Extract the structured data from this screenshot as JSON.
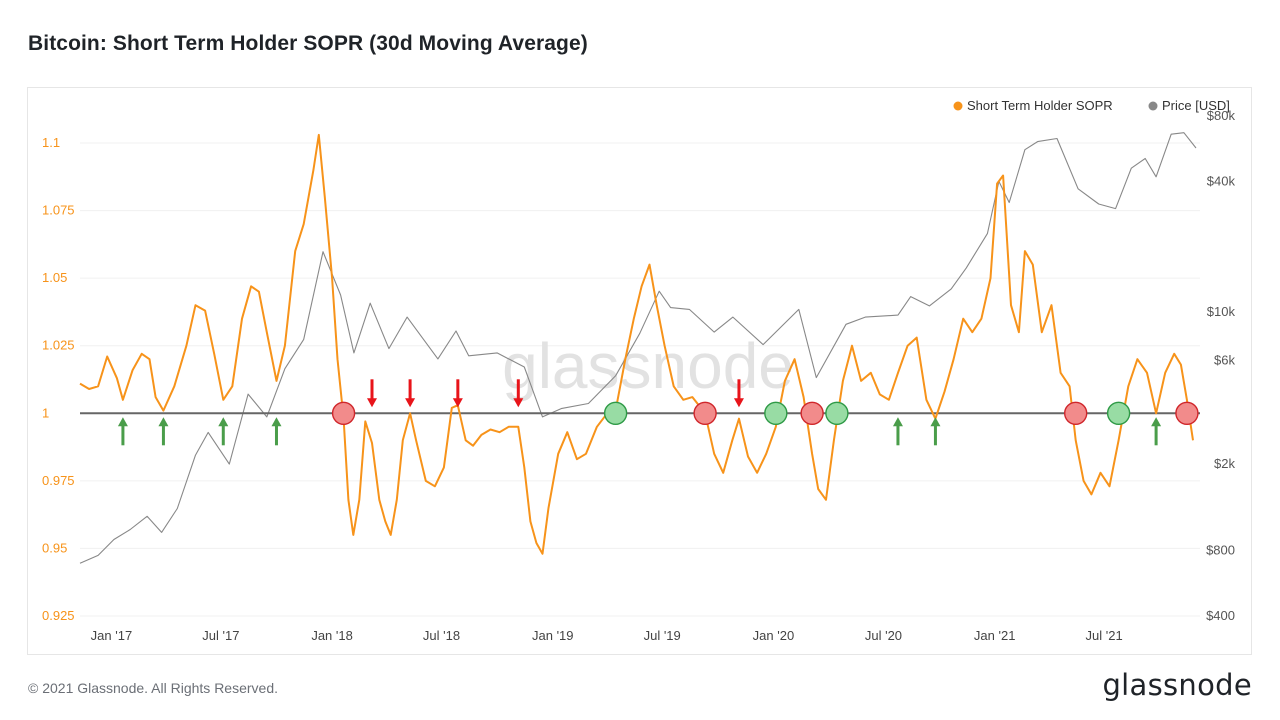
{
  "title": "Bitcoin: Short Term Holder SOPR (30d Moving Average)",
  "footer": {
    "copyright": "© 2021 Glassnode. All Rights Reserved.",
    "brand": "glassnode"
  },
  "watermark": "glassnode",
  "colors": {
    "sopr": "#f7931a",
    "price": "#888888",
    "baseline": "#666666",
    "up_arrow": "#4a9d4a",
    "down_arrow": "#e8141a",
    "red_circle": "#f28b8b",
    "green_circle": "#98dca4"
  },
  "chart_data": {
    "type": "line",
    "legend": {
      "position": "top-right",
      "items": [
        {
          "name": "Short Term Holder SOPR",
          "color": "#f7931a"
        },
        {
          "name": "Price [USD]",
          "color": "#888888"
        }
      ]
    },
    "x_ticks": [
      {
        "label": "Jan '17",
        "date": "2017-01-01"
      },
      {
        "label": "Jul '17",
        "date": "2017-07-01"
      },
      {
        "label": "Jan '18",
        "date": "2018-01-01"
      },
      {
        "label": "Jul '18",
        "date": "2018-07-01"
      },
      {
        "label": "Jan '19",
        "date": "2019-01-01"
      },
      {
        "label": "Jul '19",
        "date": "2019-07-01"
      },
      {
        "label": "Jan '20",
        "date": "2020-01-01"
      },
      {
        "label": "Jul '20",
        "date": "2020-07-01"
      },
      {
        "label": "Jan '21",
        "date": "2021-01-01"
      },
      {
        "label": "Jul '21",
        "date": "2021-07-01"
      }
    ],
    "xlim": [
      "2016-11-10",
      "2021-11-30"
    ],
    "y_left": {
      "ylim": [
        0.925,
        1.11
      ],
      "ticks": [
        {
          "v": 0.925,
          "label": "0.925"
        },
        {
          "v": 0.95,
          "label": "0.95"
        },
        {
          "v": 0.975,
          "label": "0.975"
        },
        {
          "v": 1,
          "label": "1"
        },
        {
          "v": 1.025,
          "label": "1.025"
        },
        {
          "v": 1.05,
          "label": "1.05"
        },
        {
          "v": 1.075,
          "label": "1.075"
        },
        {
          "v": 1.1,
          "label": "1.1"
        }
      ]
    },
    "y_right": {
      "scale": "log",
      "ylim": [
        400,
        80000
      ],
      "ticks": [
        {
          "v": 400,
          "label": "$400"
        },
        {
          "v": 800,
          "label": "$800"
        },
        {
          "v": 2000,
          "label": "$2k"
        },
        {
          "v": 6000,
          "label": "$6k"
        },
        {
          "v": 10000,
          "label": "$10k"
        },
        {
          "v": 40000,
          "label": "$40k"
        },
        {
          "v": 80000,
          "label": "$80k"
        }
      ]
    },
    "series": [
      {
        "name": "Short Term Holder SOPR",
        "color": "#f7931a",
        "axis": "left",
        "points": [
          [
            "2016-11-10",
            1.011
          ],
          [
            "2016-11-25",
            1.009
          ],
          [
            "2016-12-10",
            1.01
          ],
          [
            "2016-12-25",
            1.021
          ],
          [
            "2017-01-10",
            1.013
          ],
          [
            "2017-01-20",
            1.005
          ],
          [
            "2017-02-05",
            1.016
          ],
          [
            "2017-02-20",
            1.022
          ],
          [
            "2017-03-05",
            1.02
          ],
          [
            "2017-03-15",
            1.006
          ],
          [
            "2017-03-28",
            1.001
          ],
          [
            "2017-04-15",
            1.01
          ],
          [
            "2017-05-05",
            1.025
          ],
          [
            "2017-05-20",
            1.04
          ],
          [
            "2017-06-05",
            1.038
          ],
          [
            "2017-06-20",
            1.022
          ],
          [
            "2017-07-05",
            1.005
          ],
          [
            "2017-07-20",
            1.01
          ],
          [
            "2017-08-05",
            1.035
          ],
          [
            "2017-08-20",
            1.047
          ],
          [
            "2017-09-02",
            1.045
          ],
          [
            "2017-09-15",
            1.03
          ],
          [
            "2017-10-01",
            1.012
          ],
          [
            "2017-10-15",
            1.025
          ],
          [
            "2017-11-01",
            1.06
          ],
          [
            "2017-11-15",
            1.07
          ],
          [
            "2017-12-01",
            1.09
          ],
          [
            "2017-12-10",
            1.103
          ],
          [
            "2017-12-20",
            1.08
          ],
          [
            "2018-01-01",
            1.05
          ],
          [
            "2018-01-10",
            1.02
          ],
          [
            "2018-01-20",
            0.998
          ],
          [
            "2018-01-28",
            0.968
          ],
          [
            "2018-02-05",
            0.955
          ],
          [
            "2018-02-15",
            0.968
          ],
          [
            "2018-02-25",
            0.997
          ],
          [
            "2018-03-08",
            0.989
          ],
          [
            "2018-03-20",
            0.968
          ],
          [
            "2018-03-30",
            0.96
          ],
          [
            "2018-04-08",
            0.955
          ],
          [
            "2018-04-18",
            0.968
          ],
          [
            "2018-04-28",
            0.99
          ],
          [
            "2018-05-10",
            1.0
          ],
          [
            "2018-05-20",
            0.99
          ],
          [
            "2018-06-05",
            0.975
          ],
          [
            "2018-06-20",
            0.973
          ],
          [
            "2018-07-05",
            0.98
          ],
          [
            "2018-07-18",
            1.002
          ],
          [
            "2018-07-28",
            1.003
          ],
          [
            "2018-08-10",
            0.99
          ],
          [
            "2018-08-22",
            0.988
          ],
          [
            "2018-09-05",
            0.992
          ],
          [
            "2018-09-20",
            0.994
          ],
          [
            "2018-10-05",
            0.993
          ],
          [
            "2018-10-20",
            0.995
          ],
          [
            "2018-11-05",
            0.995
          ],
          [
            "2018-11-15",
            0.98
          ],
          [
            "2018-11-25",
            0.96
          ],
          [
            "2018-12-05",
            0.952
          ],
          [
            "2018-12-15",
            0.948
          ],
          [
            "2018-12-25",
            0.965
          ],
          [
            "2019-01-10",
            0.985
          ],
          [
            "2019-01-25",
            0.993
          ],
          [
            "2019-02-10",
            0.983
          ],
          [
            "2019-02-25",
            0.985
          ],
          [
            "2019-03-15",
            0.995
          ],
          [
            "2019-04-01",
            1.0
          ],
          [
            "2019-04-15",
            1.001
          ],
          [
            "2019-05-01",
            1.02
          ],
          [
            "2019-05-15",
            1.035
          ],
          [
            "2019-05-28",
            1.047
          ],
          [
            "2019-06-10",
            1.055
          ],
          [
            "2019-06-22",
            1.04
          ],
          [
            "2019-07-05",
            1.025
          ],
          [
            "2019-07-20",
            1.01
          ],
          [
            "2019-08-05",
            1.005
          ],
          [
            "2019-08-20",
            1.006
          ],
          [
            "2019-09-10",
            1.0
          ],
          [
            "2019-09-25",
            0.985
          ],
          [
            "2019-10-10",
            0.978
          ],
          [
            "2019-10-25",
            0.99
          ],
          [
            "2019-11-05",
            0.998
          ],
          [
            "2019-11-20",
            0.984
          ],
          [
            "2019-12-05",
            0.978
          ],
          [
            "2019-12-20",
            0.985
          ],
          [
            "2020-01-05",
            0.995
          ],
          [
            "2020-01-20",
            1.012
          ],
          [
            "2020-02-05",
            1.02
          ],
          [
            "2020-02-20",
            1.006
          ],
          [
            "2020-03-05",
            0.985
          ],
          [
            "2020-03-15",
            0.972
          ],
          [
            "2020-03-28",
            0.968
          ],
          [
            "2020-04-10",
            0.99
          ],
          [
            "2020-04-25",
            1.012
          ],
          [
            "2020-05-10",
            1.025
          ],
          [
            "2020-05-25",
            1.012
          ],
          [
            "2020-06-10",
            1.015
          ],
          [
            "2020-06-25",
            1.007
          ],
          [
            "2020-07-10",
            1.005
          ],
          [
            "2020-07-25",
            1.015
          ],
          [
            "2020-08-10",
            1.025
          ],
          [
            "2020-08-25",
            1.028
          ],
          [
            "2020-09-10",
            1.005
          ],
          [
            "2020-09-25",
            0.998
          ],
          [
            "2020-10-10",
            1.008
          ],
          [
            "2020-10-25",
            1.02
          ],
          [
            "2020-11-10",
            1.035
          ],
          [
            "2020-11-25",
            1.03
          ],
          [
            "2020-12-10",
            1.035
          ],
          [
            "2020-12-25",
            1.05
          ],
          [
            "2021-01-05",
            1.085
          ],
          [
            "2021-01-15",
            1.088
          ],
          [
            "2021-01-28",
            1.04
          ],
          [
            "2021-02-10",
            1.03
          ],
          [
            "2021-02-20",
            1.06
          ],
          [
            "2021-03-05",
            1.055
          ],
          [
            "2021-03-20",
            1.03
          ],
          [
            "2021-04-05",
            1.04
          ],
          [
            "2021-04-20",
            1.015
          ],
          [
            "2021-05-05",
            1.01
          ],
          [
            "2021-05-15",
            0.99
          ],
          [
            "2021-05-28",
            0.975
          ],
          [
            "2021-06-10",
            0.97
          ],
          [
            "2021-06-25",
            0.978
          ],
          [
            "2021-07-10",
            0.973
          ],
          [
            "2021-07-25",
            0.99
          ],
          [
            "2021-08-10",
            1.01
          ],
          [
            "2021-08-25",
            1.02
          ],
          [
            "2021-09-10",
            1.015
          ],
          [
            "2021-09-25",
            1.0
          ],
          [
            "2021-10-10",
            1.015
          ],
          [
            "2021-10-25",
            1.022
          ],
          [
            "2021-11-05",
            1.018
          ],
          [
            "2021-11-15",
            1.005
          ],
          [
            "2021-11-25",
            0.99
          ]
        ]
      },
      {
        "name": "Price [USD]",
        "color": "#888888",
        "axis": "right",
        "points": [
          [
            "2016-11-10",
            700
          ],
          [
            "2016-12-10",
            760
          ],
          [
            "2017-01-05",
            900
          ],
          [
            "2017-02-01",
            1000
          ],
          [
            "2017-03-01",
            1150
          ],
          [
            "2017-03-25",
            970
          ],
          [
            "2017-04-20",
            1250
          ],
          [
            "2017-05-20",
            2200
          ],
          [
            "2017-06-10",
            2800
          ],
          [
            "2017-07-15",
            2000
          ],
          [
            "2017-08-15",
            4200
          ],
          [
            "2017-09-15",
            3300
          ],
          [
            "2017-10-15",
            5500
          ],
          [
            "2017-11-15",
            7500
          ],
          [
            "2017-12-17",
            19000
          ],
          [
            "2018-01-15",
            12000
          ],
          [
            "2018-02-06",
            6500
          ],
          [
            "2018-03-05",
            11000
          ],
          [
            "2018-04-05",
            6800
          ],
          [
            "2018-05-05",
            9500
          ],
          [
            "2018-06-25",
            6100
          ],
          [
            "2018-07-25",
            8200
          ],
          [
            "2018-08-15",
            6300
          ],
          [
            "2018-10-01",
            6500
          ],
          [
            "2018-11-15",
            5600
          ],
          [
            "2018-12-15",
            3300
          ],
          [
            "2019-01-15",
            3600
          ],
          [
            "2019-03-01",
            3800
          ],
          [
            "2019-04-15",
            5100
          ],
          [
            "2019-05-25",
            8000
          ],
          [
            "2019-06-26",
            12500
          ],
          [
            "2019-07-15",
            10500
          ],
          [
            "2019-08-15",
            10300
          ],
          [
            "2019-09-25",
            8100
          ],
          [
            "2019-10-26",
            9500
          ],
          [
            "2019-12-15",
            7100
          ],
          [
            "2020-02-12",
            10300
          ],
          [
            "2020-03-12",
            5000
          ],
          [
            "2020-04-30",
            8800
          ],
          [
            "2020-06-01",
            9500
          ],
          [
            "2020-07-25",
            9700
          ],
          [
            "2020-08-15",
            11800
          ],
          [
            "2020-09-15",
            10700
          ],
          [
            "2020-10-21",
            12800
          ],
          [
            "2020-11-15",
            16000
          ],
          [
            "2020-12-20",
            23000
          ],
          [
            "2021-01-08",
            40000
          ],
          [
            "2021-01-25",
            32000
          ],
          [
            "2021-02-20",
            56000
          ],
          [
            "2021-03-13",
            61000
          ],
          [
            "2021-04-14",
            63000
          ],
          [
            "2021-05-19",
            37000
          ],
          [
            "2021-06-22",
            31500
          ],
          [
            "2021-07-20",
            30000
          ],
          [
            "2021-08-15",
            46000
          ],
          [
            "2021-09-07",
            51000
          ],
          [
            "2021-09-25",
            42000
          ],
          [
            "2021-10-20",
            66000
          ],
          [
            "2021-11-10",
            67000
          ],
          [
            "2021-11-30",
            57000
          ]
        ]
      }
    ],
    "markers": {
      "up_arrows": [
        "2017-01-20",
        "2017-03-28",
        "2017-07-05",
        "2017-10-01",
        "2020-07-25",
        "2020-09-25",
        "2021-09-25"
      ],
      "down_arrows": [
        "2018-03-08",
        "2018-05-10",
        "2018-07-28",
        "2018-11-05",
        "2019-11-05"
      ],
      "red_circles": [
        "2018-01-20",
        "2019-09-10",
        "2020-03-05",
        "2021-05-15",
        "2021-11-15"
      ],
      "green_circles": [
        "2019-04-15",
        "2020-01-05",
        "2020-04-15",
        "2021-07-25"
      ]
    }
  }
}
